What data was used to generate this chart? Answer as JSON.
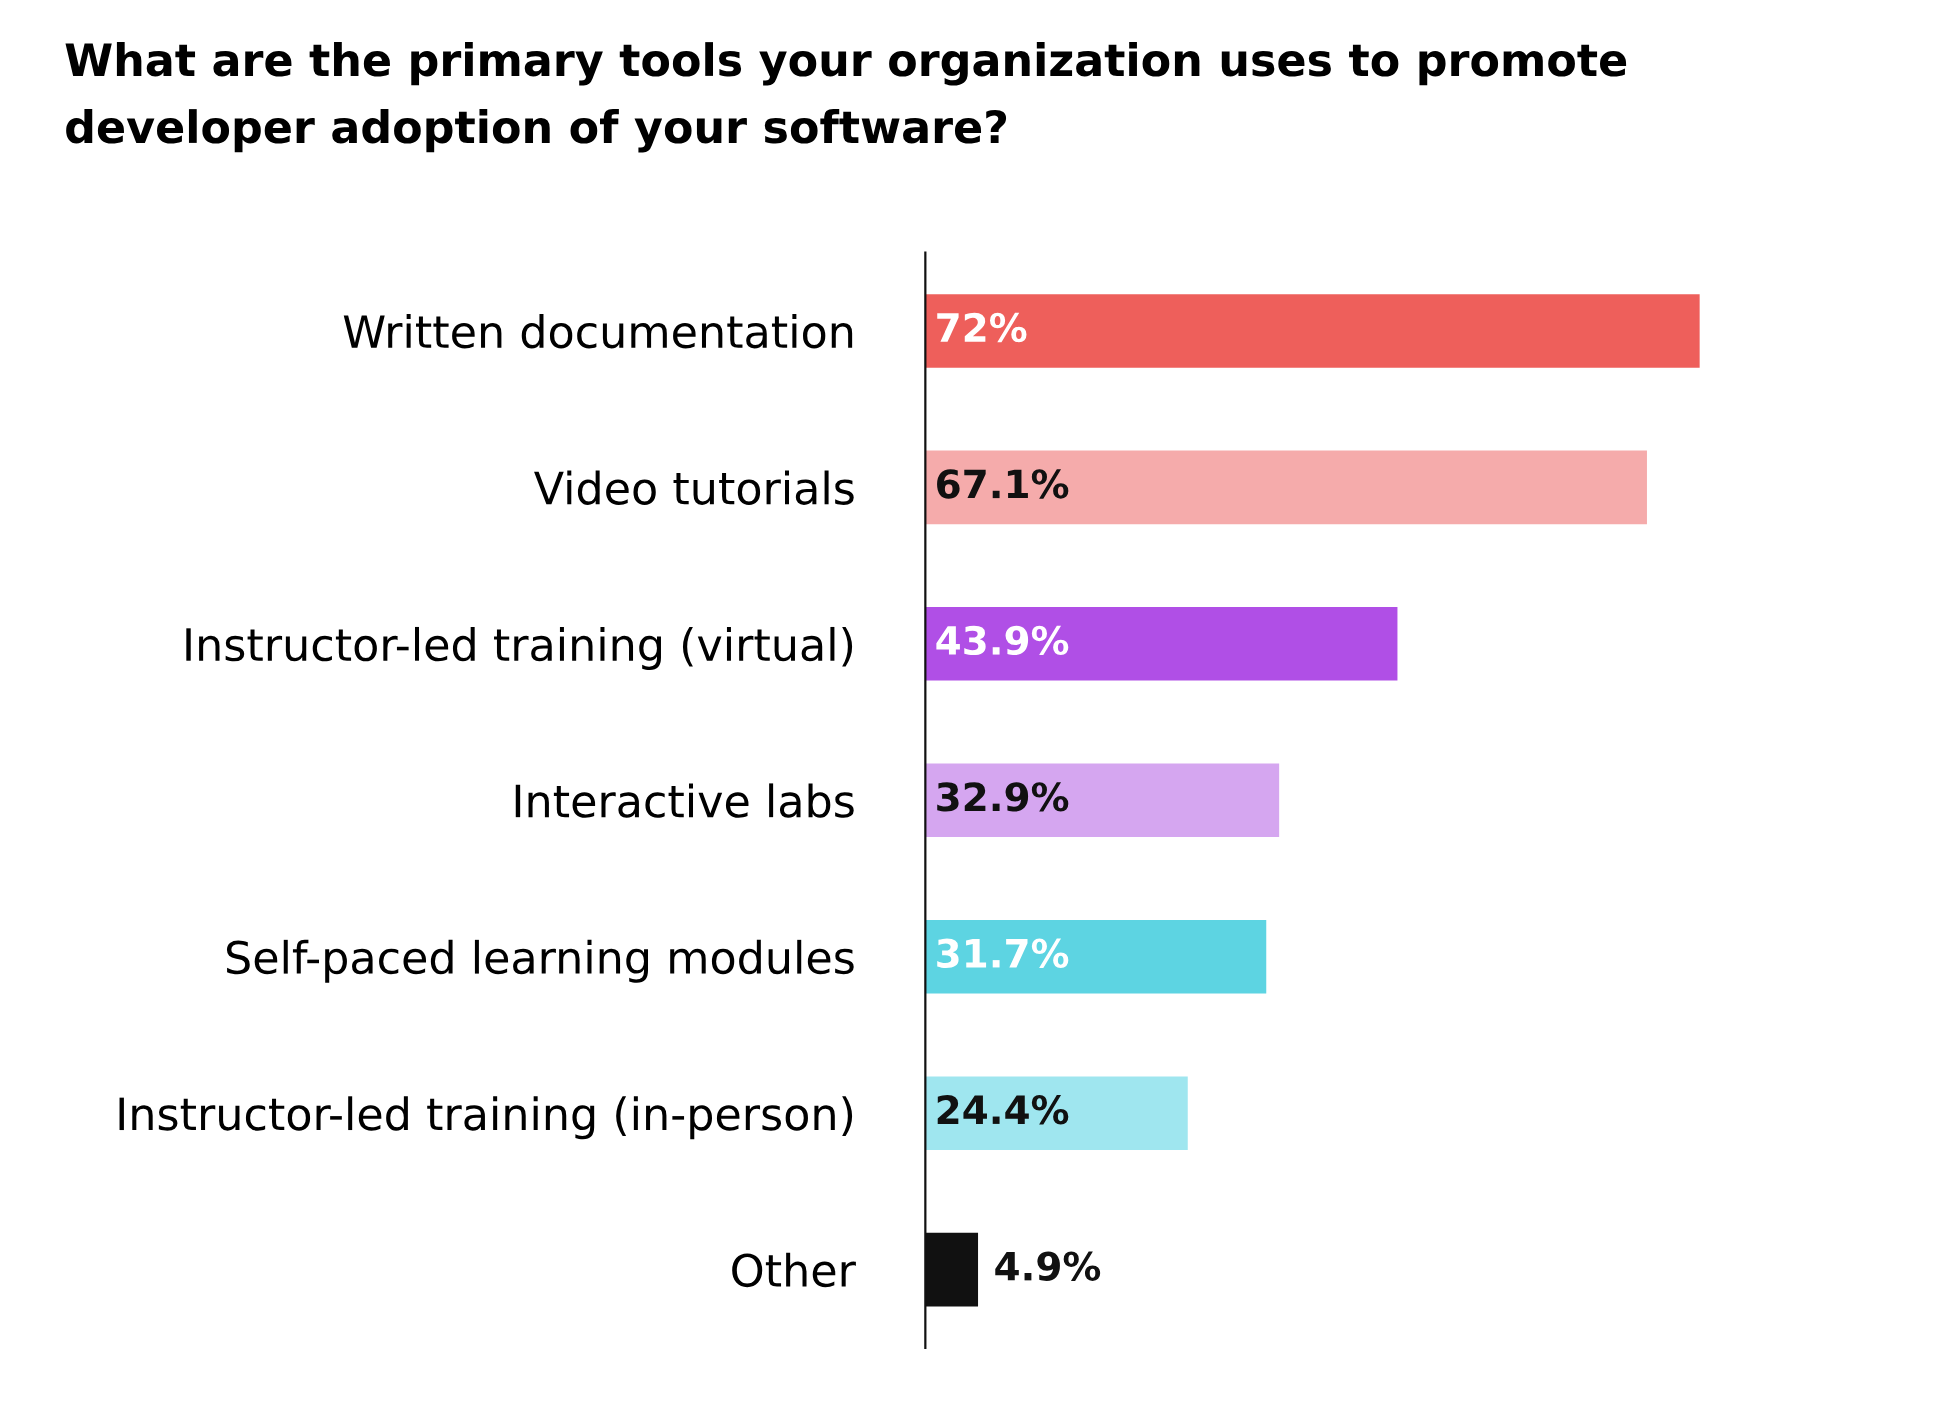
{
  "chart_data": {
    "type": "bar",
    "orientation": "horizontal",
    "title": "What are the primary tools your organization uses to promote\ndeveloper adoption of your software?",
    "categories": [
      "Written documentation",
      "Video tutorials",
      "Instructor-led training (virtual)",
      "Interactive labs",
      "Self-paced learning modules",
      "Instructor-led training (in-person)",
      "Other"
    ],
    "values": [
      72,
      67.1,
      43.9,
      32.9,
      31.7,
      24.4,
      4.9
    ],
    "colors": [
      "#ee5f5b",
      "#f5abab",
      "#b04fe6",
      "#d5a6f0",
      "#5dd4e2",
      "#9fe6ef",
      "#111111"
    ],
    "value_labels": [
      "72%",
      "67.1%",
      "43.9%",
      "32.9%",
      "31.7%",
      "24.4%",
      "4.9%"
    ],
    "grid": false,
    "legend": false
  }
}
